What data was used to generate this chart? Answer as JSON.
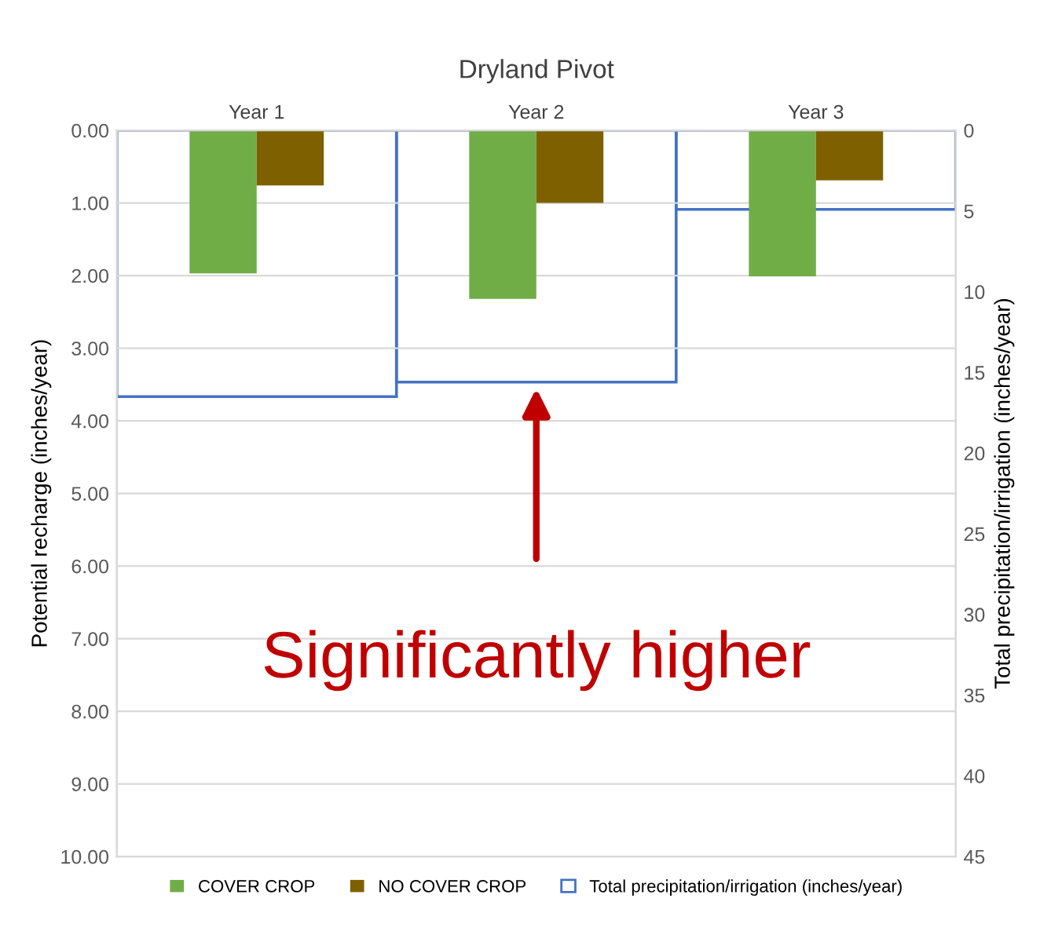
{
  "chart_data": {
    "type": "bar",
    "title": "Dryland Pivot",
    "categories": [
      "Year 1",
      "Year 2",
      "Year 3"
    ],
    "ylabel": "Potential recharge (inches/year)",
    "y2label": "Total precipitation/irrigation (inches/year)",
    "series": [
      {
        "name": "COVER CROP",
        "color": "#70ad47",
        "values": [
          1.97,
          2.32,
          2.01
        ]
      },
      {
        "name": "NO COVER CROP",
        "color": "#7f6000",
        "values": [
          0.76,
          1.0,
          0.69
        ]
      },
      {
        "name": "Total precipitation/irrigation (inches/year)",
        "color": "#4472c4",
        "axis": "y2",
        "values": [
          16.5,
          15.6,
          4.9
        ]
      }
    ],
    "ylim": [
      10,
      0
    ],
    "yticks": [
      {
        "value": 0,
        "label": "0.00"
      },
      {
        "value": 1,
        "label": "1.00"
      },
      {
        "value": 2,
        "label": "2.00"
      },
      {
        "value": 3,
        "label": "3.00"
      },
      {
        "value": 4,
        "label": "4.00"
      },
      {
        "value": 5,
        "label": "5.00"
      },
      {
        "value": 6,
        "label": "6.00"
      },
      {
        "value": 7,
        "label": "7.00"
      },
      {
        "value": 8,
        "label": "8.00"
      },
      {
        "value": 9,
        "label": "9.00"
      },
      {
        "value": 10,
        "label": "10.00"
      }
    ],
    "y2lim": [
      45,
      0
    ],
    "y2ticks": [
      0,
      5,
      10,
      15,
      20,
      25,
      30,
      35,
      40,
      45
    ],
    "grid": "y",
    "legend": "bottom",
    "annotations": [
      "Significantly higher"
    ]
  }
}
